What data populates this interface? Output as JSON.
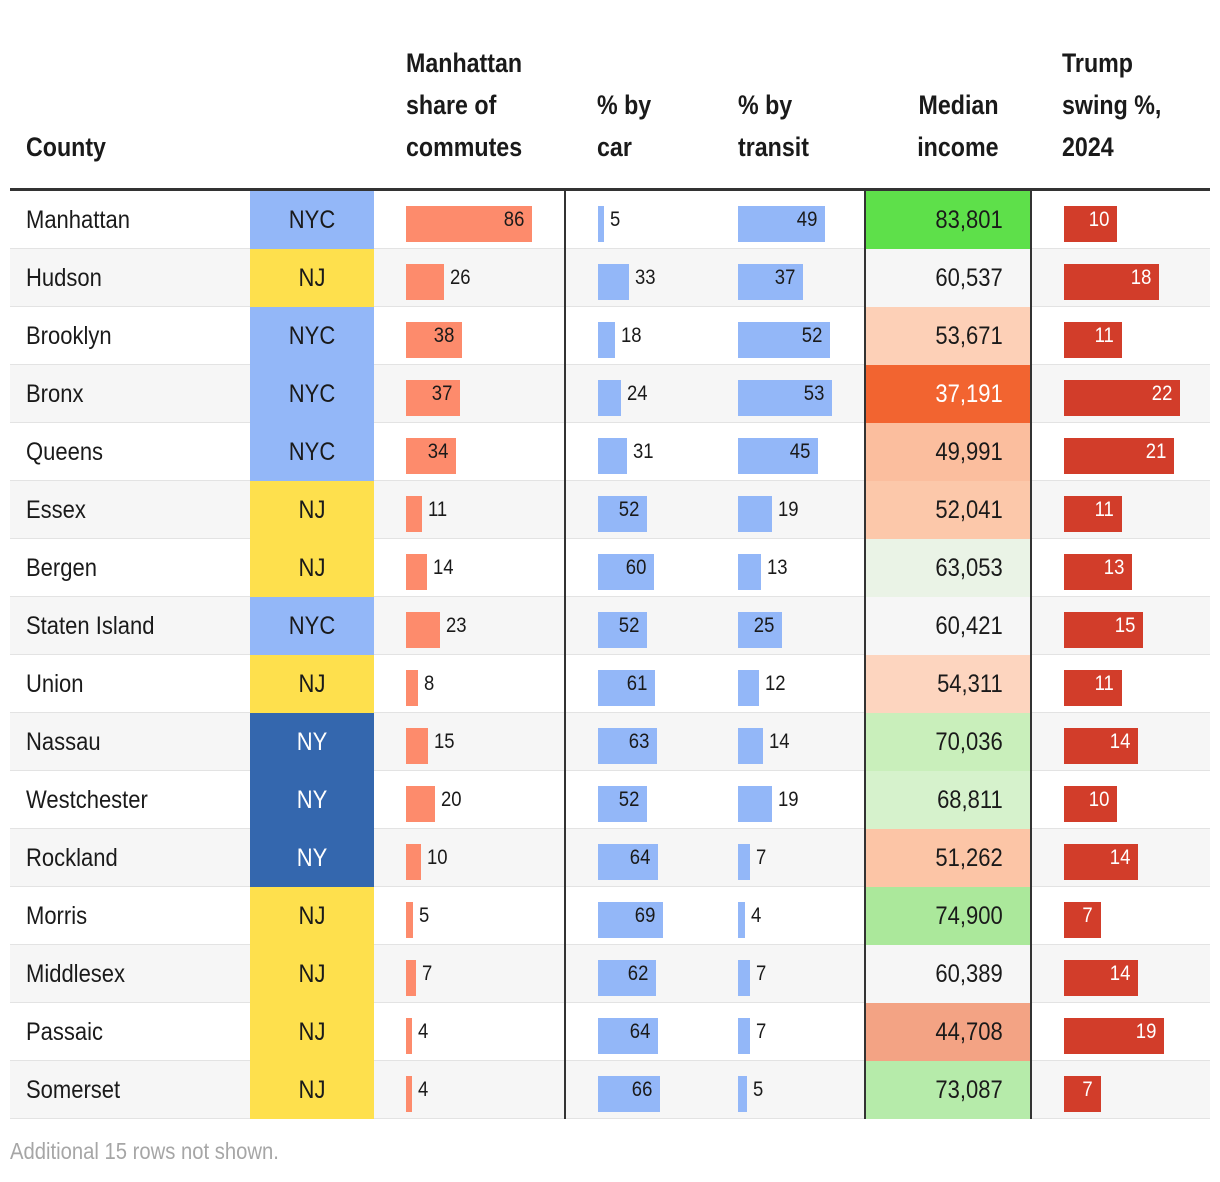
{
  "chart_data": {
    "type": "table",
    "columns": {
      "county": "County",
      "region": "",
      "manhattan_share": [
        "Manhattan",
        "share of",
        "commutes"
      ],
      "pct_car": [
        "% by",
        "car"
      ],
      "pct_transit": [
        "% by",
        "transit"
      ],
      "median_income": [
        "Median",
        "income"
      ],
      "trump_swing": [
        "Trump",
        "swing %,",
        "2024"
      ]
    },
    "rows": [
      {
        "county": "Manhattan",
        "region": "NYC",
        "manhattan_share": 86,
        "pct_car": 5,
        "pct_transit": 49,
        "median_income": "83,801",
        "trump_swing": 10
      },
      {
        "county": "Hudson",
        "region": "NJ",
        "manhattan_share": 26,
        "pct_car": 33,
        "pct_transit": 37,
        "median_income": "60,537",
        "trump_swing": 18
      },
      {
        "county": "Brooklyn",
        "region": "NYC",
        "manhattan_share": 38,
        "pct_car": 18,
        "pct_transit": 52,
        "median_income": "53,671",
        "trump_swing": 11
      },
      {
        "county": "Bronx",
        "region": "NYC",
        "manhattan_share": 37,
        "pct_car": 24,
        "pct_transit": 53,
        "median_income": "37,191",
        "trump_swing": 22
      },
      {
        "county": "Queens",
        "region": "NYC",
        "manhattan_share": 34,
        "pct_car": 31,
        "pct_transit": 45,
        "median_income": "49,991",
        "trump_swing": 21
      },
      {
        "county": "Essex",
        "region": "NJ",
        "manhattan_share": 11,
        "pct_car": 52,
        "pct_transit": 19,
        "median_income": "52,041",
        "trump_swing": 11
      },
      {
        "county": "Bergen",
        "region": "NJ",
        "manhattan_share": 14,
        "pct_car": 60,
        "pct_transit": 13,
        "median_income": "63,053",
        "trump_swing": 13
      },
      {
        "county": "Staten Island",
        "region": "NYC",
        "manhattan_share": 23,
        "pct_car": 52,
        "pct_transit": 25,
        "median_income": "60,421",
        "trump_swing": 15
      },
      {
        "county": "Union",
        "region": "NJ",
        "manhattan_share": 8,
        "pct_car": 61,
        "pct_transit": 12,
        "median_income": "54,311",
        "trump_swing": 11
      },
      {
        "county": "Nassau",
        "region": "NY",
        "manhattan_share": 15,
        "pct_car": 63,
        "pct_transit": 14,
        "median_income": "70,036",
        "trump_swing": 14
      },
      {
        "county": "Westchester",
        "region": "NY",
        "manhattan_share": 20,
        "pct_car": 52,
        "pct_transit": 19,
        "median_income": "68,811",
        "trump_swing": 10
      },
      {
        "county": "Rockland",
        "region": "NY",
        "manhattan_share": 10,
        "pct_car": 64,
        "pct_transit": 7,
        "median_income": "51,262",
        "trump_swing": 14
      },
      {
        "county": "Morris",
        "region": "NJ",
        "manhattan_share": 5,
        "pct_car": 69,
        "pct_transit": 4,
        "median_income": "74,900",
        "trump_swing": 7
      },
      {
        "county": "Middlesex",
        "region": "NJ",
        "manhattan_share": 7,
        "pct_car": 62,
        "pct_transit": 7,
        "median_income": "60,389",
        "trump_swing": 14
      },
      {
        "county": "Passaic",
        "region": "NJ",
        "manhattan_share": 4,
        "pct_car": 64,
        "pct_transit": 7,
        "median_income": "44,708",
        "trump_swing": 19
      },
      {
        "county": "Somerset",
        "region": "NJ",
        "manhattan_share": 4,
        "pct_car": 66,
        "pct_transit": 5,
        "median_income": "73,087",
        "trump_swing": 7
      }
    ],
    "footnote": "Additional 15 rows not shown."
  },
  "colors": {
    "region": {
      "NYC": "#93b7f8",
      "NJ": "#fee04d",
      "NY": "#3467ae"
    },
    "region_text": {
      "NYC": "#1a1a1a",
      "NJ": "#1a1a1a",
      "NY": "#ffffff"
    },
    "manhattan_bar": "#fd8b6c",
    "mode_bar": "#93b7f8",
    "trump_bar": "#d23d2a",
    "income": {
      "83,801": "#5ee04a",
      "60,537": "#f6f6f6",
      "53,671": "#fdd0b7",
      "37,191": "#f26430",
      "49,991": "#fbbe9e",
      "52,041": "#fcc8aa",
      "63,053": "#eaf3e6",
      "60,421": "#f6f6f6",
      "54,311": "#fdd5bf",
      "70,036": "#c9efbb",
      "68,811": "#d6f2cc",
      "51,262": "#fcc5a6",
      "74,900": "#abe89b",
      "60,389": "#f6f6f6",
      "44,708": "#f3a384",
      "73,087": "#b6ebaa"
    },
    "income_text_light": [
      "37,191"
    ]
  }
}
